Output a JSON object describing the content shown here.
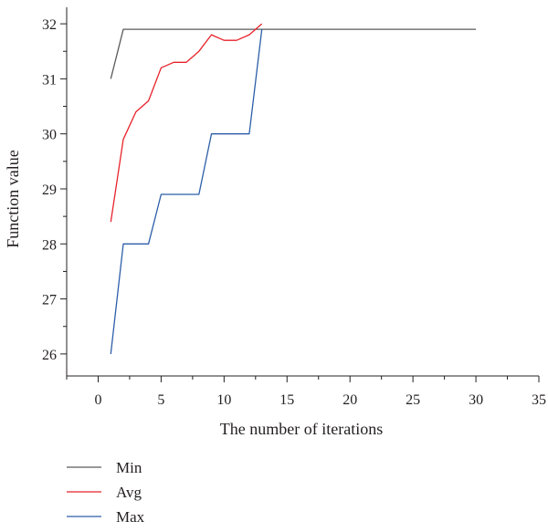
{
  "chart_data": {
    "type": "line",
    "xlabel": "The number of iterations",
    "ylabel": "Function value",
    "xlim": [
      -2.5,
      35
    ],
    "ylim": [
      25.6,
      32.3
    ],
    "xticks": [
      0,
      5,
      10,
      15,
      20,
      25,
      30,
      35
    ],
    "yticks": [
      26,
      27,
      28,
      29,
      30,
      31,
      32
    ],
    "grid": false,
    "legend_position": "bottom-left",
    "series": [
      {
        "name": "Min",
        "color": "#5a5a5a",
        "x": [
          1,
          2,
          30
        ],
        "y": [
          31.0,
          31.9,
          31.9
        ]
      },
      {
        "name": "Avg",
        "color": "#e8222a",
        "x": [
          1,
          2,
          3,
          4,
          5,
          6,
          7,
          8,
          9,
          10,
          11,
          12,
          13
        ],
        "y": [
          28.4,
          29.9,
          30.4,
          30.6,
          31.2,
          31.3,
          31.3,
          31.5,
          31.8,
          31.7,
          31.7,
          31.8,
          32.0
        ]
      },
      {
        "name": "Max",
        "color": "#2c5ea8",
        "x": [
          1,
          2,
          4,
          5,
          8,
          9,
          12,
          13
        ],
        "y": [
          26.0,
          28.0,
          28.0,
          28.9,
          28.9,
          30.0,
          30.0,
          31.9
        ]
      }
    ]
  }
}
